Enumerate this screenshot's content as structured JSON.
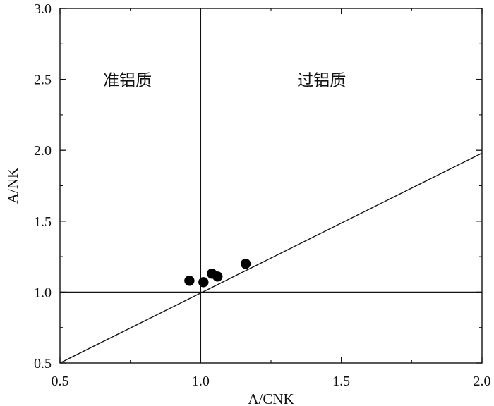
{
  "chart_data": {
    "type": "scatter",
    "title": "",
    "xlabel": "A/CNK",
    "ylabel": "A/NK",
    "xlim": [
      0.5,
      2.0
    ],
    "ylim": [
      0.5,
      3.0
    ],
    "x_ticks": [
      0.5,
      1.0,
      1.5,
      2.0
    ],
    "x_tick_labels": [
      "0.5",
      "1.0",
      "1.5",
      "2.0"
    ],
    "y_ticks": [
      0.5,
      1.0,
      1.5,
      2.0,
      2.5,
      3.0
    ],
    "y_tick_labels": [
      "0.5",
      "1.0",
      "1.5",
      "2.0",
      "2.5",
      "3.0"
    ],
    "grid": false,
    "series": [
      {
        "marker": "filled-circle",
        "color": "#000000",
        "points": [
          {
            "x": 0.96,
            "y": 1.08
          },
          {
            "x": 1.01,
            "y": 1.07
          },
          {
            "x": 1.04,
            "y": 1.13
          },
          {
            "x": 1.06,
            "y": 1.11
          },
          {
            "x": 1.16,
            "y": 1.2
          }
        ]
      }
    ],
    "reference_lines": [
      {
        "kind": "vertical",
        "x": 1.0
      },
      {
        "kind": "horizontal",
        "y": 1.0
      },
      {
        "kind": "diagonal",
        "from": [
          0.5,
          0.5
        ],
        "to": [
          2.0,
          1.98
        ]
      }
    ],
    "region_labels": [
      {
        "text": "准铝质",
        "x": 0.74,
        "y": 2.5
      },
      {
        "text": "过铝质",
        "x": 1.43,
        "y": 2.5
      }
    ]
  }
}
